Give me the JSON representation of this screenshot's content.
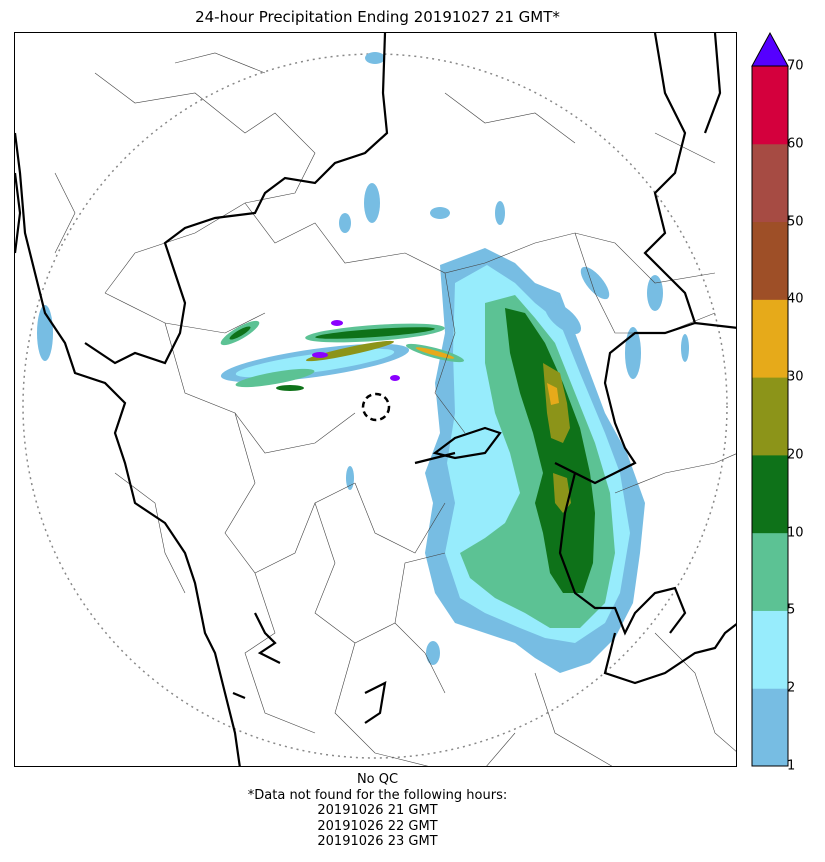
{
  "title": "24-hour Precipitation Ending 20191027 21 GMT*",
  "footer": {
    "qc_note": "No QC",
    "missing_note": "*Data not found for the following hours:",
    "missing_hours": [
      "20191026 21 GMT",
      "20191026 22 GMT",
      "20191026 23 GMT"
    ]
  },
  "colorbar": {
    "ticks": [
      "1",
      "2",
      "5",
      "10",
      "20",
      "30",
      "40",
      "50",
      "60",
      "70"
    ],
    "colors": [
      "#77bde3",
      "#97ecfc",
      "#5cc294",
      "#0e7219",
      "#8c9419",
      "#e6aa1a",
      "#9e4f27",
      "#a64b43",
      "#d4003d"
    ],
    "extend_color": "#5500ff"
  },
  "legend_palette": {
    "light_blue": "#77bde3",
    "cyan": "#97ecfc",
    "sea_green": "#5cc294",
    "dark_green": "#0e7219",
    "olive": "#8c9419",
    "orange": "#e6aa1a",
    "purple": "#8a00ff"
  }
}
